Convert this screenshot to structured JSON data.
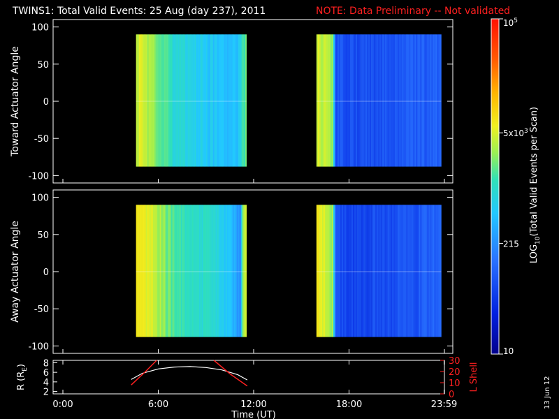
{
  "header": {
    "title": "TWINS1: Total Valid Events: 25 Aug (day 237), 2011",
    "note": "NOTE: Data Preliminary -- Not validated",
    "note_color": "#ff2020"
  },
  "footer": {
    "date_stamp": "13 Jun 12"
  },
  "chart_data": [
    {
      "type": "heatmap",
      "panel": "top",
      "ylabel": "Toward Actuator Angle",
      "ylim": [
        -110,
        110
      ],
      "yticks": [
        100,
        50,
        0,
        -50,
        -100
      ],
      "xlim_hours": [
        0,
        24
      ],
      "data_y_range": [
        -88,
        90
      ],
      "segments": [
        {
          "start_h": 4.6,
          "end_h": 11.55,
          "level_profile": [
            [
              4.6,
              0.66
            ],
            [
              5.2,
              0.63
            ],
            [
              6.0,
              0.56
            ],
            [
              7.0,
              0.49
            ],
            [
              8.0,
              0.46
            ],
            [
              9.0,
              0.43
            ],
            [
              10.0,
              0.41
            ],
            [
              11.0,
              0.4
            ],
            [
              11.3,
              0.52
            ],
            [
              11.55,
              0.55
            ]
          ]
        },
        {
          "start_h": 15.95,
          "end_h": 23.8,
          "level_profile": [
            [
              15.95,
              0.66
            ],
            [
              16.5,
              0.63
            ],
            [
              17.0,
              0.58
            ],
            [
              17.15,
              0.22
            ],
            [
              18.0,
              0.21
            ],
            [
              20.0,
              0.22
            ],
            [
              22.0,
              0.23
            ],
            [
              23.8,
              0.25
            ]
          ]
        }
      ]
    },
    {
      "type": "heatmap",
      "panel": "middle",
      "ylabel": "Away Actuator Angle",
      "ylim": [
        -110,
        110
      ],
      "yticks": [
        100,
        50,
        0,
        -50,
        -100
      ],
      "xlim_hours": [
        0,
        24
      ],
      "data_y_range": [
        -88,
        90
      ],
      "segments": [
        {
          "start_h": 4.6,
          "end_h": 11.55,
          "level_profile": [
            [
              4.6,
              0.7
            ],
            [
              5.5,
              0.67
            ],
            [
              6.0,
              0.62
            ],
            [
              7.0,
              0.54
            ],
            [
              8.0,
              0.51
            ],
            [
              9.0,
              0.49
            ],
            [
              10.0,
              0.45
            ],
            [
              11.0,
              0.35
            ],
            [
              11.2,
              0.28
            ],
            [
              11.3,
              0.62
            ],
            [
              11.55,
              0.64
            ]
          ]
        },
        {
          "start_h": 15.95,
          "end_h": 23.8,
          "level_profile": [
            [
              15.95,
              0.7
            ],
            [
              16.5,
              0.66
            ],
            [
              17.0,
              0.6
            ],
            [
              17.15,
              0.22
            ],
            [
              18.0,
              0.2
            ],
            [
              20.0,
              0.21
            ],
            [
              22.0,
              0.22
            ],
            [
              23.8,
              0.26
            ]
          ]
        }
      ]
    },
    {
      "type": "line",
      "panel": "orbit",
      "ylabel": "R (R_E)",
      "ylabel_main": "R (R",
      "ylabel_sub": "E",
      "ylabel_close": ")",
      "y2label": "L Shell",
      "y2label_color": "#ff2020",
      "ylim": [
        1.5,
        8.5
      ],
      "yticks": [
        "8",
        "6",
        "4",
        "2"
      ],
      "y2lim": [
        0,
        30
      ],
      "y2ticks": [
        "30",
        "20",
        "10",
        "0"
      ],
      "xlabel": "Time (UT)",
      "xticks": [
        "0:00",
        "6:00",
        "12:00",
        "18:00",
        "23:59"
      ],
      "x_hours": [
        4.3,
        5.0,
        6.0,
        7.0,
        8.0,
        9.0,
        10.0,
        11.0,
        11.6
      ],
      "R_values": [
        4.5,
        5.8,
        6.7,
        7.1,
        7.2,
        7.0,
        6.5,
        5.5,
        4.4
      ],
      "Lshell_segments": [
        {
          "x_hours": [
            4.3,
            5.2,
            5.9
          ],
          "values": [
            8,
            20,
            30
          ]
        },
        {
          "x_hours": [
            9.5,
            10.5,
            11.6
          ],
          "values": [
            30,
            18,
            7
          ]
        }
      ]
    },
    {
      "type": "colorbar",
      "label_prefix": "LOG",
      "label_sub": "10",
      "label_suffix": "(Total Valid Events per Scan)",
      "tick_labels": [
        {
          "text": "10",
          "sup": "5",
          "frac": 1.0
        },
        {
          "text": "5x10",
          "sup": "3",
          "frac": 0.66
        },
        {
          "text": "215",
          "frac": 0.33
        },
        {
          "text": "10",
          "frac": 0.0
        }
      ]
    }
  ]
}
